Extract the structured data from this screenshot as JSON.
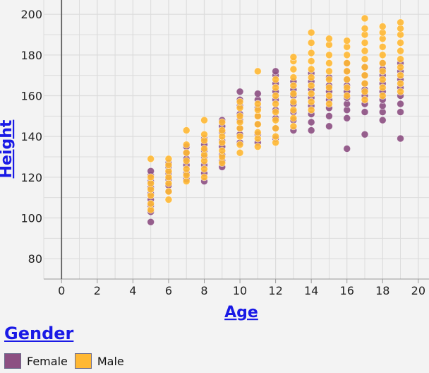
{
  "chart_data": {
    "type": "scatter",
    "xlabel": "Age",
    "ylabel": "Height",
    "xlim": [
      -1,
      20.6
    ],
    "ylim": [
      70,
      207
    ],
    "xticks": [
      "0",
      "2",
      "4",
      "6",
      "8",
      "10",
      "12",
      "14",
      "16",
      "18",
      "20"
    ],
    "yticks": [
      "80",
      "100",
      "120",
      "140",
      "160",
      "180",
      "200"
    ],
    "grid": true,
    "legend_title": "Gender",
    "legend_position": "bottom-left",
    "series": [
      {
        "name": "Female",
        "color": "#8c4f82",
        "points": [
          [
            5,
            98
          ],
          [
            5,
            103
          ],
          [
            5,
            106
          ],
          [
            5,
            109
          ],
          [
            5,
            112
          ],
          [
            5,
            115
          ],
          [
            5,
            118
          ],
          [
            5,
            121
          ],
          [
            5,
            123
          ],
          [
            6,
            113
          ],
          [
            6,
            116
          ],
          [
            6,
            119
          ],
          [
            6,
            122
          ],
          [
            6,
            125
          ],
          [
            6,
            127
          ],
          [
            7,
            119
          ],
          [
            7,
            122
          ],
          [
            7,
            126
          ],
          [
            7,
            129
          ],
          [
            7,
            132
          ],
          [
            7,
            135
          ],
          [
            8,
            118
          ],
          [
            8,
            122
          ],
          [
            8,
            126
          ],
          [
            8,
            130
          ],
          [
            8,
            133
          ],
          [
            8,
            136
          ],
          [
            8,
            139
          ],
          [
            9,
            125
          ],
          [
            9,
            128
          ],
          [
            9,
            131
          ],
          [
            9,
            135
          ],
          [
            9,
            138
          ],
          [
            9,
            142
          ],
          [
            9,
            145
          ],
          [
            9,
            148
          ],
          [
            10,
            137
          ],
          [
            10,
            141
          ],
          [
            10,
            144
          ],
          [
            10,
            148
          ],
          [
            10,
            151
          ],
          [
            10,
            155
          ],
          [
            10,
            158
          ],
          [
            10,
            162
          ],
          [
            11,
            137
          ],
          [
            11,
            141
          ],
          [
            11,
            146
          ],
          [
            11,
            150
          ],
          [
            11,
            154
          ],
          [
            11,
            158
          ],
          [
            11,
            161
          ],
          [
            12,
            139
          ],
          [
            12,
            144
          ],
          [
            12,
            149
          ],
          [
            12,
            153
          ],
          [
            12,
            158
          ],
          [
            12,
            162
          ],
          [
            12,
            166
          ],
          [
            12,
            170
          ],
          [
            12,
            172
          ],
          [
            13,
            143
          ],
          [
            13,
            148
          ],
          [
            13,
            152
          ],
          [
            13,
            156
          ],
          [
            13,
            160
          ],
          [
            13,
            163
          ],
          [
            13,
            167
          ],
          [
            14,
            143
          ],
          [
            14,
            147
          ],
          [
            14,
            151
          ],
          [
            14,
            155
          ],
          [
            14,
            159
          ],
          [
            14,
            163
          ],
          [
            14,
            167
          ],
          [
            14,
            171
          ],
          [
            15,
            145
          ],
          [
            15,
            150
          ],
          [
            15,
            154
          ],
          [
            15,
            158
          ],
          [
            15,
            162
          ],
          [
            15,
            165
          ],
          [
            15,
            169
          ],
          [
            16,
            134
          ],
          [
            16,
            149
          ],
          [
            16,
            153
          ],
          [
            16,
            156
          ],
          [
            16,
            159
          ],
          [
            16,
            162
          ],
          [
            16,
            165
          ],
          [
            16,
            168
          ],
          [
            16,
            172
          ],
          [
            16,
            176
          ],
          [
            17,
            141
          ],
          [
            17,
            152
          ],
          [
            17,
            156
          ],
          [
            17,
            160
          ],
          [
            17,
            163
          ],
          [
            17,
            166
          ],
          [
            17,
            170
          ],
          [
            17,
            174
          ],
          [
            18,
            148
          ],
          [
            18,
            152
          ],
          [
            18,
            155
          ],
          [
            18,
            158
          ],
          [
            18,
            162
          ],
          [
            18,
            166
          ],
          [
            18,
            170
          ],
          [
            18,
            173
          ],
          [
            18,
            176
          ],
          [
            19,
            139
          ],
          [
            19,
            152
          ],
          [
            19,
            156
          ],
          [
            19,
            160
          ],
          [
            19,
            164
          ],
          [
            19,
            168
          ],
          [
            19,
            172
          ],
          [
            19,
            176
          ]
        ]
      },
      {
        "name": "Male",
        "color": "#ffb833",
        "points": [
          [
            5,
            104
          ],
          [
            5,
            107
          ],
          [
            5,
            111
          ],
          [
            5,
            114
          ],
          [
            5,
            117
          ],
          [
            5,
            120
          ],
          [
            5,
            129
          ],
          [
            6,
            109
          ],
          [
            6,
            113
          ],
          [
            6,
            117
          ],
          [
            6,
            120
          ],
          [
            6,
            123
          ],
          [
            6,
            126
          ],
          [
            6,
            129
          ],
          [
            7,
            118
          ],
          [
            7,
            121
          ],
          [
            7,
            124
          ],
          [
            7,
            128
          ],
          [
            7,
            132
          ],
          [
            7,
            136
          ],
          [
            7,
            143
          ],
          [
            8,
            120
          ],
          [
            8,
            124
          ],
          [
            8,
            128
          ],
          [
            8,
            131
          ],
          [
            8,
            134
          ],
          [
            8,
            138
          ],
          [
            8,
            141
          ],
          [
            8,
            148
          ],
          [
            9,
            127
          ],
          [
            9,
            130
          ],
          [
            9,
            133
          ],
          [
            9,
            137
          ],
          [
            9,
            140
          ],
          [
            9,
            143
          ],
          [
            9,
            147
          ],
          [
            10,
            132
          ],
          [
            10,
            136
          ],
          [
            10,
            140
          ],
          [
            10,
            144
          ],
          [
            10,
            147
          ],
          [
            10,
            150
          ],
          [
            10,
            154
          ],
          [
            10,
            157
          ],
          [
            11,
            135
          ],
          [
            11,
            139
          ],
          [
            11,
            142
          ],
          [
            11,
            146
          ],
          [
            11,
            150
          ],
          [
            11,
            153
          ],
          [
            11,
            156
          ],
          [
            11,
            172
          ],
          [
            12,
            137
          ],
          [
            12,
            140
          ],
          [
            12,
            144
          ],
          [
            12,
            148
          ],
          [
            12,
            152
          ],
          [
            12,
            156
          ],
          [
            12,
            160
          ],
          [
            12,
            164
          ],
          [
            12,
            168
          ],
          [
            13,
            145
          ],
          [
            13,
            149
          ],
          [
            13,
            153
          ],
          [
            13,
            157
          ],
          [
            13,
            161
          ],
          [
            13,
            165
          ],
          [
            13,
            169
          ],
          [
            13,
            173
          ],
          [
            13,
            177
          ],
          [
            13,
            179
          ],
          [
            14,
            153
          ],
          [
            14,
            157
          ],
          [
            14,
            161
          ],
          [
            14,
            165
          ],
          [
            14,
            169
          ],
          [
            14,
            173
          ],
          [
            14,
            177
          ],
          [
            14,
            181
          ],
          [
            14,
            186
          ],
          [
            14,
            191
          ],
          [
            15,
            156
          ],
          [
            15,
            160
          ],
          [
            15,
            164
          ],
          [
            15,
            168
          ],
          [
            15,
            172
          ],
          [
            15,
            176
          ],
          [
            15,
            180
          ],
          [
            15,
            185
          ],
          [
            15,
            188
          ],
          [
            16,
            160
          ],
          [
            16,
            164
          ],
          [
            16,
            168
          ],
          [
            16,
            172
          ],
          [
            16,
            176
          ],
          [
            16,
            180
          ],
          [
            16,
            184
          ],
          [
            16,
            187
          ],
          [
            17,
            158
          ],
          [
            17,
            162
          ],
          [
            17,
            166
          ],
          [
            17,
            170
          ],
          [
            17,
            174
          ],
          [
            17,
            178
          ],
          [
            17,
            182
          ],
          [
            17,
            186
          ],
          [
            17,
            190
          ],
          [
            17,
            193
          ],
          [
            17,
            198
          ],
          [
            18,
            160
          ],
          [
            18,
            164
          ],
          [
            18,
            168
          ],
          [
            18,
            172
          ],
          [
            18,
            176
          ],
          [
            18,
            180
          ],
          [
            18,
            184
          ],
          [
            18,
            188
          ],
          [
            18,
            191
          ],
          [
            18,
            194
          ],
          [
            19,
            162
          ],
          [
            19,
            166
          ],
          [
            19,
            170
          ],
          [
            19,
            174
          ],
          [
            19,
            178
          ],
          [
            19,
            182
          ],
          [
            19,
            186
          ],
          [
            19,
            190
          ],
          [
            19,
            193
          ],
          [
            19,
            196
          ]
        ]
      }
    ]
  }
}
